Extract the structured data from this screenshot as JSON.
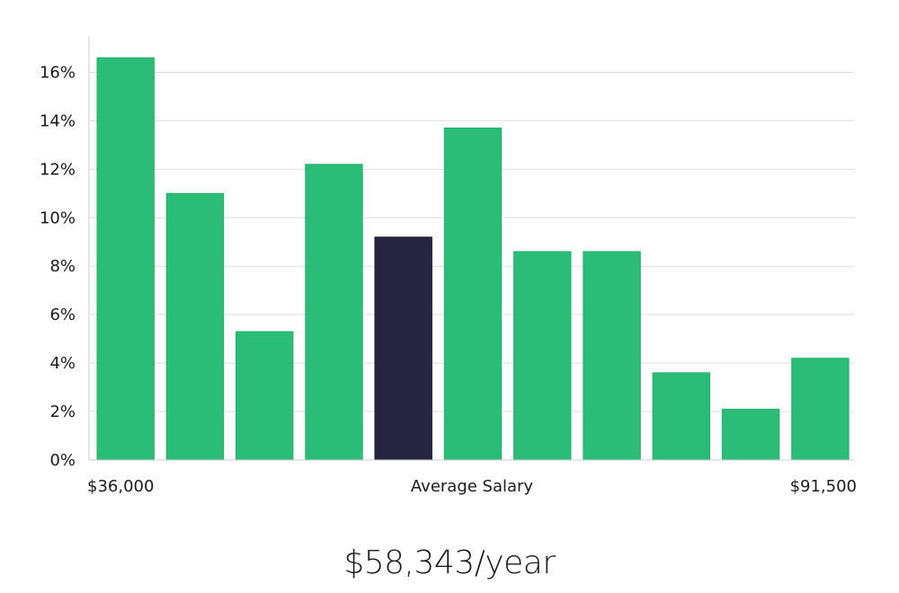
{
  "chart_data": {
    "type": "bar",
    "title": "",
    "xlabel": "Average Salary",
    "ylabel": "",
    "ylim": [
      0,
      17.5
    ],
    "y_ticks": [
      0,
      2,
      4,
      6,
      8,
      10,
      12,
      14,
      16
    ],
    "y_tick_suffix": "%",
    "grid": "horizontal",
    "x_range_labels": {
      "min": "$36,000",
      "max": "$91,500"
    },
    "values": [
      16.6,
      11.0,
      5.3,
      12.2,
      9.2,
      13.7,
      8.6,
      8.6,
      3.6,
      2.1,
      4.2
    ],
    "highlight_index": 4,
    "colors": {
      "bar": "#2bbd77",
      "highlight": "#272442",
      "grid": "#dddddd",
      "axis": "#cccccc"
    }
  },
  "summary": {
    "average_salary": "$58,343/year"
  }
}
